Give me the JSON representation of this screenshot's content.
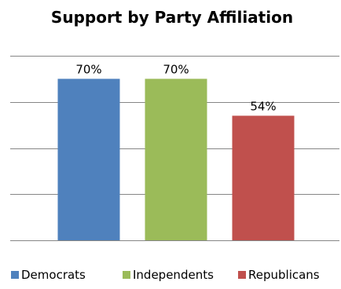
{
  "chart_data": {
    "type": "bar",
    "title": "Support by Party Affiliation",
    "categories": [
      "Democrats",
      "Independents",
      "Republicans"
    ],
    "values": [
      70,
      70,
      54
    ],
    "value_labels": [
      "70%",
      "70%",
      "54%"
    ],
    "colors": [
      "#4F81BD",
      "#9BBB59",
      "#C0504D"
    ],
    "ylim": [
      0,
      80
    ],
    "ytick_step": 20,
    "y_tick_labels_visible": false,
    "grid": true,
    "legend_position": "bottom"
  }
}
